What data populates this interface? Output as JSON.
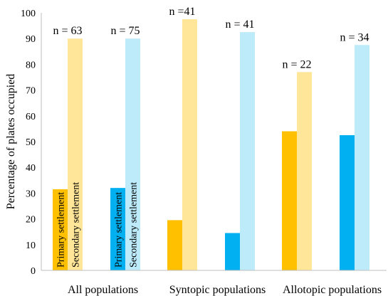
{
  "chart_data": {
    "type": "bar",
    "ylabel": "Percentage of plates occupied",
    "xlabel": "",
    "ylim": [
      0,
      100
    ],
    "yticks": [
      0,
      10,
      20,
      30,
      40,
      50,
      60,
      70,
      80,
      90,
      100
    ],
    "groups": [
      {
        "label": "All populations",
        "subgroups": [
          {
            "annotation": "n = 63",
            "primary": 31.5,
            "secondary": 90,
            "primary_color": "#FFC000",
            "secondary_color": "#FFE699"
          },
          {
            "annotation": "n = 75",
            "primary": 32,
            "secondary": 90,
            "primary_color": "#00B0F0",
            "secondary_color": "#BDEBFA"
          }
        ]
      },
      {
        "label": "Syntopic populations",
        "subgroups": [
          {
            "annotation": "n =41",
            "primary": 19.5,
            "secondary": 97.5,
            "primary_color": "#FFC000",
            "secondary_color": "#FFE699"
          },
          {
            "annotation": "n = 41",
            "primary": 14.5,
            "secondary": 92.5,
            "primary_color": "#00B0F0",
            "secondary_color": "#BDEBFA"
          }
        ]
      },
      {
        "label": "Allotopic populations",
        "subgroups": [
          {
            "annotation": "n = 22",
            "primary": 54,
            "secondary": 77,
            "primary_color": "#FFC000",
            "secondary_color": "#FFE699"
          },
          {
            "annotation": "n = 34",
            "primary": 52.5,
            "secondary": 87.5,
            "primary_color": "#00B0F0",
            "secondary_color": "#BDEBFA"
          }
        ]
      }
    ],
    "bar_labels": {
      "primary": "Primary settlement",
      "secondary": "Secondary settlement"
    }
  }
}
